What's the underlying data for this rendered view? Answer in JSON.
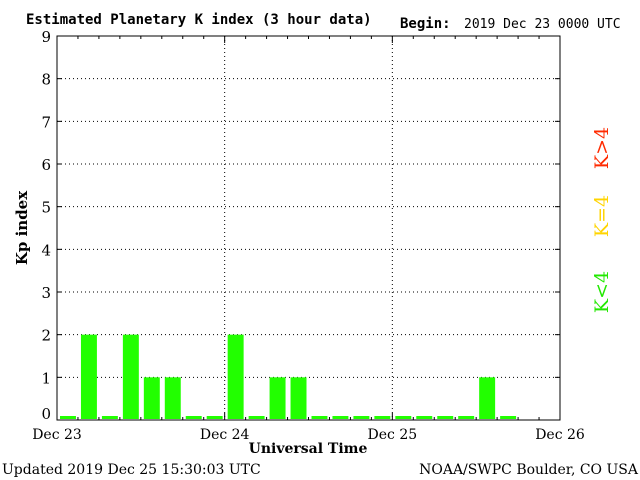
{
  "chart_data": {
    "type": "bar",
    "title": "Estimated Planetary K index (3 hour data)",
    "begin_label": "Begin:",
    "begin_value": "2019 Dec 23 0000 UTC",
    "xlabel": "Universal Time",
    "ylabel": "Kp index",
    "ylim": [
      0,
      9
    ],
    "y_ticks": [
      "0",
      "1",
      "2",
      "3",
      "4",
      "5",
      "6",
      "7",
      "8",
      "9"
    ],
    "x_ticks": [
      "Dec 23",
      "Dec 24",
      "Dec 25",
      "Dec 26"
    ],
    "grid": true,
    "bars_per_day": 8,
    "days": 3,
    "values": [
      0,
      2,
      0,
      2,
      1,
      1,
      0,
      0,
      2,
      0,
      1,
      1,
      0,
      0,
      0,
      0,
      0,
      0,
      0,
      0,
      1,
      0
    ],
    "legend": [
      {
        "label": "K>4",
        "color": "#ff2a00"
      },
      {
        "label": "K=4",
        "color": "#ffd400"
      },
      {
        "label": "K<4",
        "color": "#22e800"
      }
    ],
    "bar_color": "#22ff00"
  },
  "footer": {
    "updated": "Updated 2019 Dec 25 15:30:03 UTC",
    "source": "NOAA/SWPC Boulder, CO USA"
  }
}
